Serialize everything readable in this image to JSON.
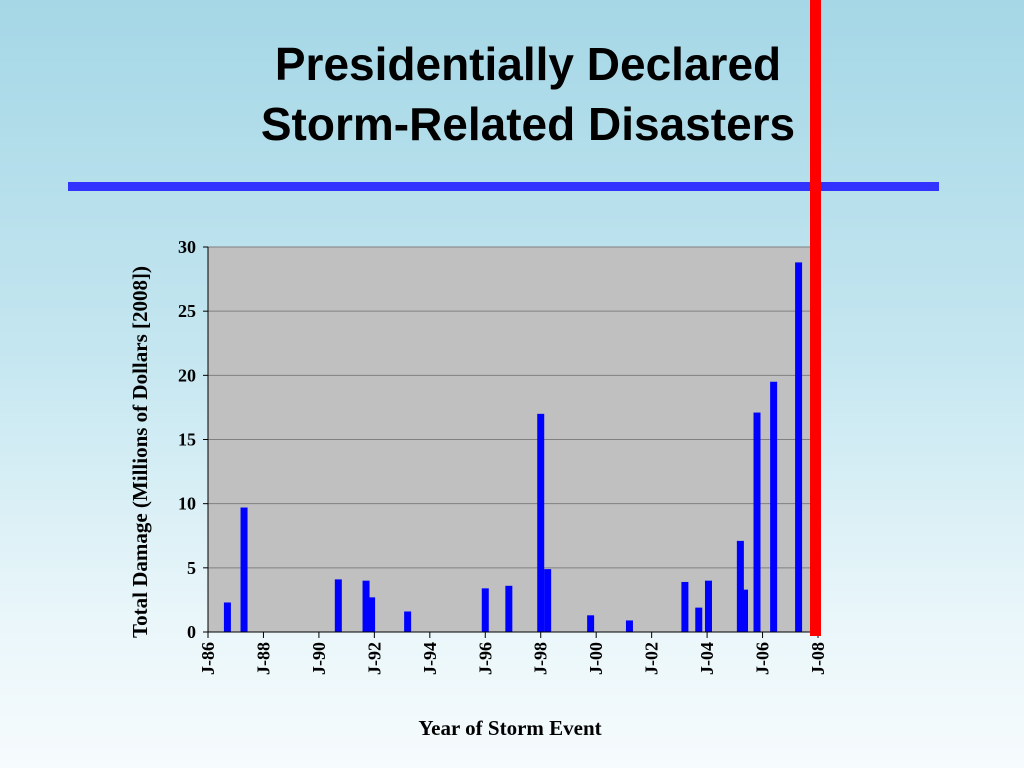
{
  "slide": {
    "title_line1": "Presidentially Declared",
    "title_line2": "Storm-Related Disasters"
  },
  "colors": {
    "bar": "#0000ff",
    "plot_background": "#c0c0c0",
    "vertical_marker": "#ff0000",
    "title_rule": "#3333ff"
  },
  "chart_data": {
    "type": "bar",
    "title": "",
    "xlabel": "Year of Storm Event",
    "ylabel": "Total Damage (Millions of Dollars [2008])",
    "ylim": [
      0,
      30
    ],
    "yticks": [
      0,
      5,
      10,
      15,
      20,
      25,
      30
    ],
    "xlim": [
      1986,
      2008
    ],
    "xticks": [
      {
        "value": 1986,
        "label": "J-86"
      },
      {
        "value": 1988,
        "label": "J-88"
      },
      {
        "value": 1990,
        "label": "J-90"
      },
      {
        "value": 1992,
        "label": "J-92"
      },
      {
        "value": 1994,
        "label": "J-94"
      },
      {
        "value": 1996,
        "label": "J-96"
      },
      {
        "value": 1998,
        "label": "J-98"
      },
      {
        "value": 2000,
        "label": "J-00"
      },
      {
        "value": 2002,
        "label": "J-02"
      },
      {
        "value": 2004,
        "label": "J-04"
      },
      {
        "value": 2006,
        "label": "J-06"
      },
      {
        "value": 2008,
        "label": "J-08"
      }
    ],
    "grid": "horizontal",
    "series": [
      {
        "points": [
          {
            "x": 1986.7,
            "y": 2.3
          },
          {
            "x": 1987.3,
            "y": 9.7
          },
          {
            "x": 1990.7,
            "y": 4.1
          },
          {
            "x": 1991.7,
            "y": 4.0
          },
          {
            "x": 1991.9,
            "y": 2.7
          },
          {
            "x": 1993.2,
            "y": 1.6
          },
          {
            "x": 1996.0,
            "y": 3.4
          },
          {
            "x": 1996.85,
            "y": 3.6
          },
          {
            "x": 1998.0,
            "y": 17.0
          },
          {
            "x": 1998.25,
            "y": 4.9
          },
          {
            "x": 1999.8,
            "y": 1.3
          },
          {
            "x": 2001.2,
            "y": 0.9
          },
          {
            "x": 2003.2,
            "y": 3.9
          },
          {
            "x": 2003.7,
            "y": 1.9
          },
          {
            "x": 2004.05,
            "y": 4.0
          },
          {
            "x": 2005.2,
            "y": 7.1
          },
          {
            "x": 2005.35,
            "y": 3.3
          },
          {
            "x": 2005.8,
            "y": 17.1
          },
          {
            "x": 2006.4,
            "y": 19.5
          },
          {
            "x": 2007.3,
            "y": 28.8
          }
        ]
      }
    ]
  }
}
